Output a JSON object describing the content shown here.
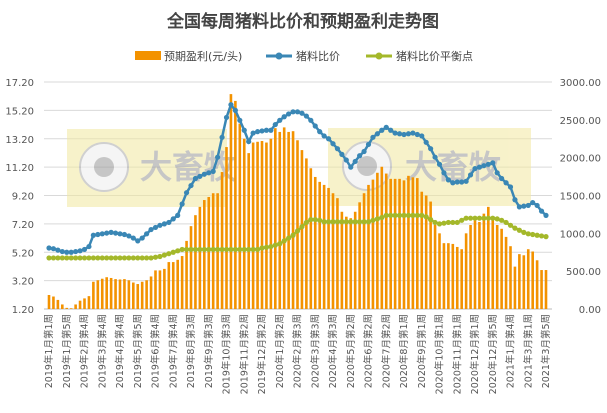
{
  "chart_data": {
    "type": "bar+line",
    "title": "全国每周猪料比价和预期盈利走势图",
    "legend": [
      "预期盈利(元/头)",
      "猪料比价",
      "猪料比价平衡点"
    ],
    "legend_position": "top",
    "grid": true,
    "y_left": {
      "ticks": [
        "17.20",
        "15.20",
        "13.20",
        "11.20",
        "9.20",
        "7.20",
        "5.20",
        "3.20",
        "1.20"
      ],
      "range": [
        1.2,
        17.2
      ]
    },
    "y_right": {
      "ticks": [
        "3000.00",
        "2500.00",
        "2000.00",
        "1500.00",
        "1000.00",
        "500.00",
        "0.00"
      ],
      "range": [
        0,
        3000
      ]
    },
    "x_tick_labels": [
      "2019年1月第1周",
      "2019年1月第5周",
      "2019年2月第4周",
      "2019年3月第4周",
      "2019年4月第4周",
      "2019年5月第5周",
      "2019年6月第4周",
      "2019年7月第4周",
      "2019年8月第3周",
      "2019年9月第3周",
      "2019年10月第3周",
      "2019年11月第2周",
      "2019年12月第2周",
      "2020年1月第2周",
      "2020年2月第3周",
      "2020年3月第3周",
      "2020年4月第3周",
      "2020年5月第2周",
      "2020年6月第2周",
      "2020年7月第2周",
      "2020年8月第1周",
      "2020年9月第1周",
      "2020年10月第1周",
      "2020年11月第1周",
      "2020年12月第1周",
      "2020年12月第5周",
      "2021年1月第4周",
      "2021年3月第1周",
      "2021年3月第5周"
    ],
    "series": [
      {
        "name": "预期盈利(元/头)",
        "type": "bar",
        "axis": "right",
        "color": "#f39200",
        "values": [
          185,
          165,
          120,
          60,
          15,
          10,
          60,
          110,
          140,
          170,
          360,
          380,
          400,
          420,
          410,
          395,
          390,
          395,
          380,
          350,
          330,
          360,
          380,
          430,
          510,
          510,
          530,
          620,
          620,
          650,
          700,
          900,
          1095,
          1240,
          1350,
          1440,
          1480,
          1530,
          1530,
          1810,
          2140,
          2840,
          2750,
          2450,
          2250,
          2060,
          2200,
          2210,
          2220,
          2200,
          2250,
          2390,
          2340,
          2400,
          2340,
          2350,
          2230,
          2100,
          1990,
          1860,
          1745,
          1680,
          1640,
          1600,
          1530,
          1465,
          1285,
          1220,
          1200,
          1285,
          1410,
          1530,
          1640,
          1710,
          1800,
          1880,
          1790,
          1720,
          1720,
          1720,
          1700,
          1760,
          1740,
          1730,
          1550,
          1500,
          1420,
          1110,
          1000,
          870,
          870,
          860,
          820,
          790,
          1000,
          1110,
          1170,
          1150,
          1260,
          1350,
          1200,
          1110,
          1060,
          953,
          830,
          560,
          725,
          710,
          790,
          760,
          644,
          515,
          515
        ]
      },
      {
        "name": "猪料比价",
        "type": "line",
        "axis": "left",
        "color": "#3a87b5",
        "values": [
          5.5,
          5.45,
          5.35,
          5.25,
          5.2,
          5.2,
          5.25,
          5.3,
          5.4,
          5.6,
          6.4,
          6.45,
          6.5,
          6.55,
          6.6,
          6.55,
          6.5,
          6.45,
          6.35,
          6.2,
          6.0,
          6.2,
          6.5,
          6.8,
          6.95,
          7.1,
          7.2,
          7.3,
          7.55,
          7.8,
          8.6,
          9.4,
          9.9,
          10.4,
          10.55,
          10.7,
          10.8,
          10.9,
          11.9,
          13.3,
          14.7,
          15.6,
          15.2,
          14.5,
          13.8,
          13.0,
          13.6,
          13.7,
          13.75,
          13.8,
          13.8,
          14.2,
          14.5,
          14.75,
          14.95,
          15.1,
          15.1,
          15.0,
          14.8,
          14.5,
          14.1,
          13.7,
          13.4,
          13.2,
          12.85,
          12.5,
          12.1,
          11.7,
          11.2,
          11.6,
          12.0,
          12.3,
          12.8,
          13.3,
          13.55,
          13.8,
          14.0,
          13.8,
          13.6,
          13.55,
          13.5,
          13.55,
          13.6,
          13.5,
          13.4,
          12.95,
          12.5,
          11.9,
          11.4,
          10.8,
          10.3,
          10.1,
          10.15,
          10.15,
          10.2,
          10.65,
          11.1,
          11.2,
          11.3,
          11.4,
          11.5,
          10.8,
          10.4,
          10.1,
          9.8,
          8.9,
          8.4,
          8.45,
          8.5,
          8.7,
          8.5,
          8.1,
          7.8
        ]
      },
      {
        "name": "猪料比价平衡点",
        "type": "line",
        "axis": "left",
        "color": "#a4b82a",
        "values": [
          4.8,
          4.8,
          4.8,
          4.8,
          4.8,
          4.8,
          4.8,
          4.8,
          4.8,
          4.8,
          4.8,
          4.8,
          4.8,
          4.8,
          4.8,
          4.8,
          4.8,
          4.8,
          4.8,
          4.8,
          4.8,
          4.8,
          4.8,
          4.8,
          4.85,
          4.9,
          5.0,
          5.1,
          5.2,
          5.3,
          5.4,
          5.4,
          5.4,
          5.4,
          5.4,
          5.4,
          5.4,
          5.4,
          5.4,
          5.4,
          5.4,
          5.4,
          5.4,
          5.4,
          5.4,
          5.4,
          5.4,
          5.4,
          5.5,
          5.55,
          5.6,
          5.7,
          5.8,
          6.0,
          6.2,
          6.4,
          6.7,
          7.0,
          7.3,
          7.5,
          7.5,
          7.45,
          7.35,
          7.35,
          7.35,
          7.35,
          7.35,
          7.35,
          7.35,
          7.35,
          7.35,
          7.35,
          7.35,
          7.45,
          7.55,
          7.65,
          7.8,
          7.8,
          7.8,
          7.8,
          7.8,
          7.8,
          7.8,
          7.8,
          7.8,
          7.7,
          7.5,
          7.3,
          7.2,
          7.25,
          7.3,
          7.3,
          7.3,
          7.45,
          7.6,
          7.6,
          7.6,
          7.6,
          7.6,
          7.6,
          7.6,
          7.55,
          7.45,
          7.3,
          7.1,
          6.9,
          6.75,
          6.6,
          6.5,
          6.45,
          6.4,
          6.35,
          6.3
        ]
      }
    ]
  },
  "watermark": {
    "name": "大畜牧",
    "url": "www.dxumu.com"
  }
}
